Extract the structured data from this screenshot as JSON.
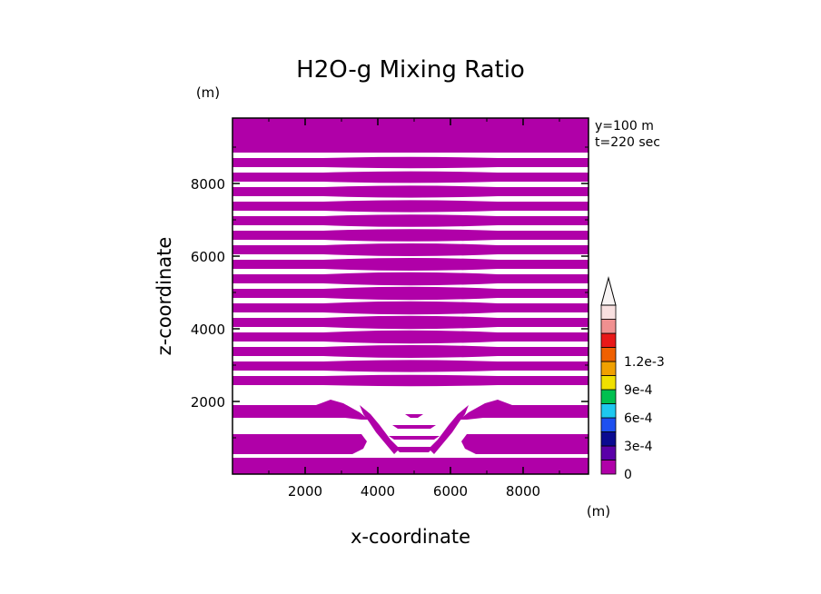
{
  "chart_data": {
    "type": "heatmap",
    "title": "H2O-g Mixing Ratio",
    "xlabel": "x-coordinate",
    "ylabel": "z-coordinate",
    "x_unit": "(m)",
    "y_unit": "(m)",
    "annotations": [
      "y=100 m",
      "t=220 sec"
    ],
    "xlim": [
      0,
      9800
    ],
    "ylim": [
      0,
      9800
    ],
    "xticks": [
      2000,
      4000,
      6000,
      8000
    ],
    "yticks": [
      2000,
      4000,
      6000,
      8000
    ],
    "x_tick_labels": [
      "2000",
      "4000",
      "6000",
      "8000"
    ],
    "y_tick_labels": [
      "2000",
      "4000",
      "6000",
      "8000"
    ],
    "fill_color": "#b000a8",
    "bands": [
      {
        "y0": 8850,
        "y1": 9800,
        "bulge": 0
      },
      {
        "y0": 8450,
        "y1": 8700,
        "bulge": 60
      },
      {
        "y0": 8050,
        "y1": 8300,
        "bulge": 70
      },
      {
        "y0": 7650,
        "y1": 7900,
        "bulge": 80
      },
      {
        "y0": 7250,
        "y1": 7500,
        "bulge": 80
      },
      {
        "y0": 6850,
        "y1": 7100,
        "bulge": 90
      },
      {
        "y0": 6450,
        "y1": 6700,
        "bulge": 90
      },
      {
        "y0": 6050,
        "y1": 6300,
        "bulge": 100
      },
      {
        "y0": 5650,
        "y1": 5900,
        "bulge": 100
      },
      {
        "y0": 5250,
        "y1": 5500,
        "bulge": 110
      },
      {
        "y0": 4850,
        "y1": 5100,
        "bulge": 110
      },
      {
        "y0": 4450,
        "y1": 4700,
        "bulge": 110
      },
      {
        "y0": 4050,
        "y1": 4300,
        "bulge": 110
      },
      {
        "y0": 3650,
        "y1": 3900,
        "bulge": 110
      },
      {
        "y0": 3250,
        "y1": 3500,
        "bulge": 100
      },
      {
        "y0": 2850,
        "y1": 3100,
        "bulge": 80
      },
      {
        "y0": 2450,
        "y1": 2700,
        "bulge": 60
      }
    ],
    "colorbar": {
      "levels": [
        "0",
        "1.5e-4",
        "3e-4",
        "4.5e-4",
        "6e-4",
        "7.5e-4",
        "9e-4",
        "1.05e-3",
        "1.2e-3",
        "1.35e-3"
      ],
      "colors": [
        "#b000a8",
        "#5a00a8",
        "#0a0a90",
        "#1e50f0",
        "#1ec8f0",
        "#00c050",
        "#f0e000",
        "#f0a000",
        "#f06000",
        "#e81818",
        "#f09090",
        "#f8e0e0"
      ],
      "tick_labels": [
        {
          "label": "0",
          "value": 0
        },
        {
          "label": "3e-4",
          "value": 0.0003
        },
        {
          "label": "6e-4",
          "value": 0.0006
        },
        {
          "label": "9e-4",
          "value": 0.0009
        },
        {
          "label": "1.2e-3",
          "value": 0.0012
        }
      ]
    }
  }
}
